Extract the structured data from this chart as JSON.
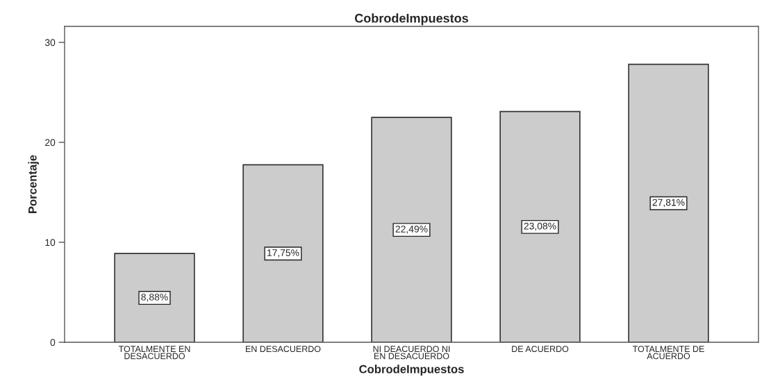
{
  "chart_data": {
    "type": "bar",
    "title": "CobrodeImpuestos",
    "xlabel": "CobrodeImpuestos",
    "ylabel": "Porcentaje",
    "categories": [
      "TOTALMENTE EN\nDESACUERDO",
      "EN DESACUERDO",
      "NI DEACUERDO NI\nEN DESACUERDO",
      "DE ACUERDO",
      "TOTALMENTE DE\nACUERDO"
    ],
    "values": [
      8.88,
      17.75,
      22.49,
      23.08,
      27.81
    ],
    "value_labels": [
      "8,88%",
      "17,75%",
      "22,49%",
      "23,08%",
      "27,81%"
    ],
    "color": "#cccccc",
    "ylim": [
      0,
      31.6
    ],
    "yticks": [
      0,
      10,
      20,
      30
    ],
    "grid": false,
    "legend": false
  }
}
